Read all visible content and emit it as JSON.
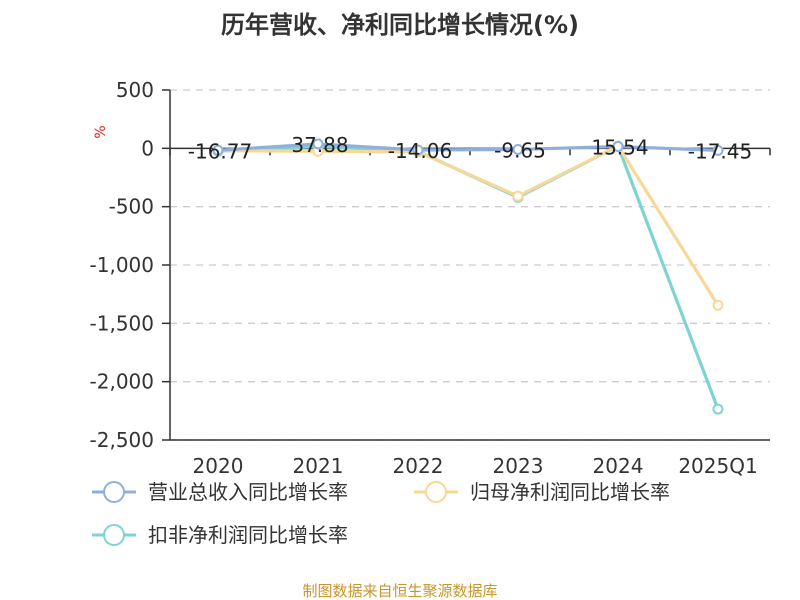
{
  "chart_data": {
    "type": "line",
    "title": "历年营收、净利同比增长情况(%)",
    "ylabel": "%",
    "categories": [
      "2020",
      "2021",
      "2022",
      "2023",
      "2024",
      "2025Q1"
    ],
    "ylim": [
      -2500,
      500
    ],
    "yticks": [
      500,
      0,
      -500,
      -1000,
      -1500,
      -2000,
      -2500
    ],
    "ytick_labels": [
      "500",
      "0",
      "-500",
      "-1,000",
      "-1,500",
      "-2,000",
      "-2,500"
    ],
    "grid": true,
    "legend_position": "bottom-left",
    "series": [
      {
        "name": "营业总收入同比增长率",
        "color": "#8fb0dc",
        "values": [
          -16.77,
          37.88,
          -14.06,
          -9.65,
          15.54,
          -17.45
        ],
        "labels": [
          "-16.77",
          "37.88",
          "-14.06",
          "-9.65",
          "15.54",
          "-17.45"
        ]
      },
      {
        "name": "归母净利润同比增长率",
        "color": "#f7d898",
        "values": [
          -20,
          -25,
          -30,
          -410,
          20,
          -1345
        ]
      },
      {
        "name": "扣非净利润同比增长率",
        "color": "#7fd3d3",
        "values": [
          -25,
          15,
          -25,
          -420,
          20,
          -2235
        ]
      }
    ]
  },
  "source": "制图数据来自恒生聚源数据库"
}
